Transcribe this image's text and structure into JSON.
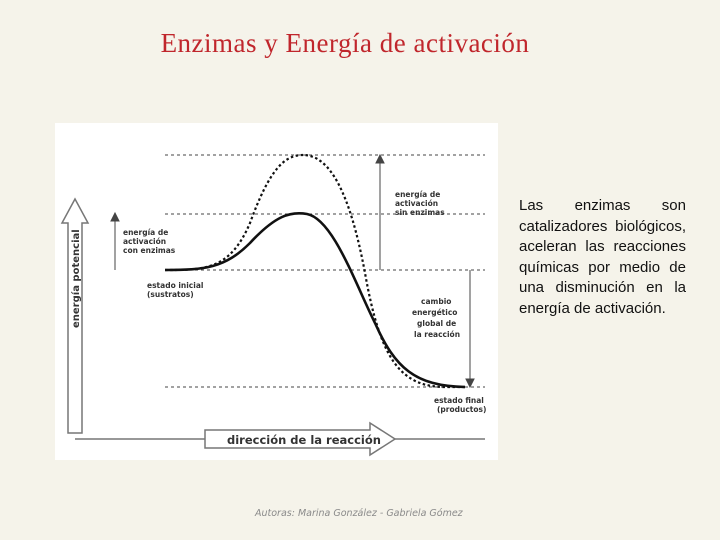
{
  "slide": {
    "title": "Enzimas y Energía de activación",
    "body": "Las enzimas son catalizadores biológicos, aceleran las reacciones químicas por medio de una disminución en la energía de activación.",
    "footer": "Autoras: Marina González - Gabriela Gómez"
  },
  "diagram": {
    "y_axis_label": "energía potencial",
    "x_axis_label": "dirección de la reacción",
    "labels": {
      "ea_with_enzyme": [
        "energía de",
        "activación",
        "con enzimas"
      ],
      "ea_without_enzyme": [
        "energía de",
        "activación",
        "sin enzimas"
      ],
      "initial_state": [
        "estado inicial",
        "(sustratos)"
      ],
      "final_state": [
        "estado final",
        "(productos)"
      ],
      "energy_change": [
        "cambio",
        "energético",
        "global de",
        "la reacción"
      ]
    },
    "colors": {
      "title": "#c0262c",
      "curve": "#111111",
      "guides": "#444444"
    }
  }
}
